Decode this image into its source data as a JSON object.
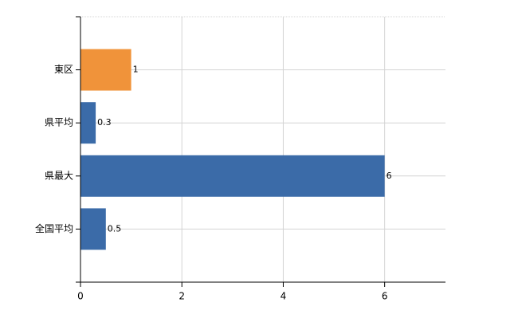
{
  "chart_data": {
    "type": "hbar",
    "categories": [
      "東区",
      "県平均",
      "県最大",
      "全国平均"
    ],
    "values": [
      1,
      0.3,
      6,
      0.5
    ],
    "colors": [
      "#f0933a",
      "#3b6ba8",
      "#3b6ba8",
      "#3b6ba8"
    ],
    "xlim": [
      0,
      7.2
    ],
    "xticks": [
      0,
      2,
      4,
      6
    ],
    "grid": true
  }
}
